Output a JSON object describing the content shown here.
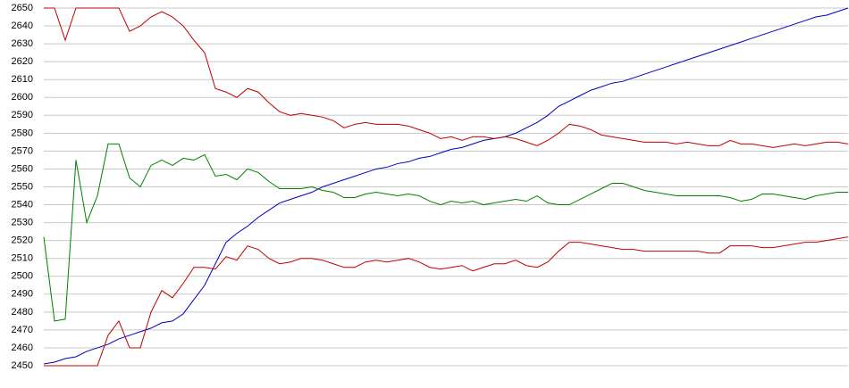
{
  "chart_data": {
    "type": "line",
    "ylim": [
      2450,
      2650
    ],
    "yticks": [
      2450,
      2460,
      2470,
      2480,
      2490,
      2500,
      2510,
      2520,
      2530,
      2540,
      2550,
      2560,
      2570,
      2580,
      2590,
      2600,
      2610,
      2620,
      2630,
      2640,
      2650
    ],
    "grid": true,
    "series": [
      {
        "color": "#0000c0",
        "values": [
          2451,
          2452,
          2454,
          2455,
          2458,
          2460,
          2462,
          2465,
          2467,
          2469,
          2471,
          2474,
          2475,
          2479,
          2487,
          2495,
          2507,
          2519,
          2524,
          2528,
          2533,
          2537,
          2541,
          2543,
          2545,
          2547,
          2550,
          2552,
          2554,
          2556,
          2558,
          2560,
          2561,
          2563,
          2564,
          2566,
          2567,
          2569,
          2571,
          2572,
          2574,
          2576,
          2577,
          2578,
          2580,
          2583,
          2586,
          2590,
          2595,
          2598,
          2601,
          2604,
          2606,
          2608,
          2609,
          2611,
          2613,
          2615,
          2617,
          2619,
          2621,
          2623,
          2625,
          2627,
          2629,
          2631,
          2633,
          2635,
          2637,
          2639,
          2641,
          2643,
          2645,
          2646,
          2648,
          2650
        ]
      },
      {
        "color": "#c00000",
        "values": [
          2650,
          2650,
          2632,
          2650,
          2650,
          2650,
          2650,
          2650,
          2637,
          2640,
          2645,
          2648,
          2645,
          2640,
          2632,
          2625,
          2605,
          2603,
          2600,
          2605,
          2603,
          2597,
          2592,
          2590,
          2591,
          2590,
          2589,
          2587,
          2583,
          2585,
          2586,
          2585,
          2585,
          2585,
          2584,
          2582,
          2580,
          2577,
          2578,
          2576,
          2578,
          2578,
          2577,
          2578,
          2577,
          2575,
          2573,
          2576,
          2580,
          2585,
          2584,
          2582,
          2579,
          2578,
          2577,
          2576,
          2575,
          2575,
          2575,
          2574,
          2575,
          2574,
          2573,
          2573,
          2576,
          2574,
          2574,
          2573,
          2572,
          2573,
          2574,
          2573,
          2574,
          2575,
          2575,
          2574
        ]
      },
      {
        "color": "#008000",
        "values": [
          2522,
          2475,
          2476,
          2565,
          2530,
          2545,
          2574,
          2574,
          2555,
          2550,
          2562,
          2565,
          2562,
          2566,
          2565,
          2568,
          2556,
          2557,
          2554,
          2560,
          2558,
          2553,
          2549,
          2549,
          2549,
          2550,
          2548,
          2547,
          2544,
          2544,
          2546,
          2547,
          2546,
          2545,
          2546,
          2545,
          2542,
          2540,
          2542,
          2541,
          2542,
          2540,
          2541,
          2542,
          2543,
          2542,
          2545,
          2541,
          2540,
          2540,
          2543,
          2546,
          2549,
          2552,
          2552,
          2550,
          2548,
          2547,
          2546,
          2545,
          2545,
          2545,
          2545,
          2545,
          2544,
          2542,
          2543,
          2546,
          2546,
          2545,
          2544,
          2543,
          2545,
          2546,
          2547,
          2547
        ]
      },
      {
        "color": "#c00000",
        "values": [
          2450,
          2450,
          2450,
          2450,
          2450,
          2450,
          2467,
          2475,
          2460,
          2460,
          2480,
          2492,
          2488,
          2496,
          2505,
          2505,
          2504,
          2511,
          2509,
          2517,
          2515,
          2510,
          2507,
          2508,
          2510,
          2510,
          2509,
          2507,
          2505,
          2505,
          2508,
          2509,
          2508,
          2509,
          2510,
          2508,
          2505,
          2504,
          2505,
          2506,
          2503,
          2505,
          2507,
          2507,
          2509,
          2506,
          2505,
          2508,
          2514,
          2519,
          2519,
          2518,
          2517,
          2516,
          2515,
          2515,
          2514,
          2514,
          2514,
          2514,
          2514,
          2514,
          2513,
          2513,
          2517,
          2517,
          2517,
          2516,
          2516,
          2517,
          2518,
          2519,
          2519,
          2520,
          2521,
          2522
        ]
      }
    ]
  }
}
